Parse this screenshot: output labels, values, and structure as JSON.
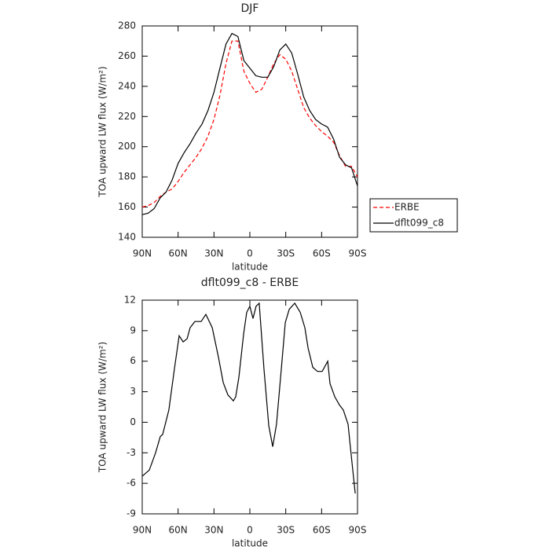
{
  "chart_data": [
    {
      "type": "line",
      "title": "DJF",
      "x_label": "latitude",
      "y_label": "TOA upward LW flux (W/m²)",
      "x": [
        90,
        85,
        80,
        75,
        70,
        65,
        60,
        55,
        50,
        45,
        40,
        35,
        30,
        25,
        20,
        15,
        10,
        5,
        0,
        -5,
        -10,
        -15,
        -20,
        -25,
        -30,
        -35,
        -40,
        -45,
        -50,
        -55,
        -60,
        -65,
        -70,
        -75,
        -80,
        -85,
        -90
      ],
      "series": [
        {
          "name": "ERBE",
          "color": "#ff0000",
          "line_style": "dashed",
          "values": [
            160,
            161,
            163,
            167,
            170,
            172,
            177,
            183,
            188,
            193,
            199,
            207,
            218,
            234,
            255,
            270,
            270,
            250,
            242,
            236,
            238,
            246,
            255,
            261,
            258,
            250,
            238,
            226,
            219,
            214,
            210,
            207,
            203,
            194,
            187,
            187,
            180
          ]
        },
        {
          "name": "dflt099_c8",
          "color": "#000000",
          "line_style": "solid",
          "values": [
            155,
            156,
            159,
            166,
            170,
            178,
            189,
            196,
            202,
            209,
            215,
            224,
            236,
            252,
            268,
            275,
            273,
            257,
            252,
            247,
            246,
            246,
            253,
            264,
            268,
            262,
            248,
            233,
            224,
            218,
            215,
            213,
            205,
            193,
            188,
            186,
            174
          ]
        }
      ],
      "xlim": [
        90,
        -90
      ],
      "xticks": [
        {
          "value": 90,
          "label": "90N"
        },
        {
          "value": 60,
          "label": "60N"
        },
        {
          "value": 30,
          "label": "30N"
        },
        0,
        {
          "value": -30,
          "label": "30S"
        },
        {
          "value": -60,
          "label": "60S"
        },
        {
          "value": -90,
          "label": "90S"
        }
      ],
      "ylim": [
        140,
        280
      ],
      "yticks": [
        140,
        160,
        180,
        200,
        220,
        240,
        260,
        280
      ],
      "legend": "right"
    },
    {
      "type": "line",
      "title": "dflt099_c8 - ERBE",
      "x_label": "latitude",
      "y_label": "TOA upward LW flux (W/m²)",
      "x": [
        90,
        84.1,
        78.8,
        74.9,
        72.9,
        67.7,
        63.1,
        59.1,
        55.8,
        52.5,
        49.9,
        46.0,
        40.7,
        36.8,
        31.5,
        26.3,
        22.3,
        18.4,
        13.8,
        11.8,
        9.2,
        5.2,
        2.6,
        0,
        -2.6,
        -5.2,
        -7.8,
        -11.8,
        -15.8,
        -19.1,
        -22.3,
        -26.3,
        -29.6,
        -32.9,
        -37.5,
        -42.1,
        -46.0,
        -48.7,
        -52.6,
        -56.5,
        -60.5,
        -65.1,
        -67.0,
        -71.0,
        -74.9,
        -78.2,
        -82.1,
        -84.8,
        -88.1
      ],
      "series": [
        {
          "name": "dflt099_c8 - ERBE",
          "color": "#000000",
          "line_style": "solid",
          "values": [
            -5.3,
            -4.7,
            -3,
            -1.4,
            -1.2,
            1.2,
            5.2,
            8.5,
            7.9,
            8.2,
            9.3,
            9.9,
            9.9,
            10.6,
            9.3,
            6.4,
            3.9,
            2.7,
            2.1,
            2.5,
            4.4,
            8.7,
            10.8,
            11.4,
            10.2,
            11.4,
            11.7,
            5.2,
            -0.35,
            -2.4,
            -0.2,
            5.2,
            9.8,
            11.1,
            11.7,
            10.8,
            9.3,
            7.3,
            5.4,
            5.0,
            5.0,
            6.0,
            3.8,
            2.5,
            1.7,
            1.2,
            -0.2,
            -3.3,
            -7.0
          ]
        }
      ],
      "xlim": [
        90,
        -90
      ],
      "xticks": [
        {
          "value": 90,
          "label": "90N"
        },
        {
          "value": 60,
          "label": "60N"
        },
        {
          "value": 30,
          "label": "30N"
        },
        0,
        {
          "value": -30,
          "label": "30S"
        },
        {
          "value": -60,
          "label": "60S"
        },
        {
          "value": -90,
          "label": "90S"
        }
      ],
      "ylim": [
        -9,
        12
      ],
      "yticks": [
        -9,
        -6,
        -3,
        0,
        3,
        6,
        9,
        12
      ]
    }
  ]
}
